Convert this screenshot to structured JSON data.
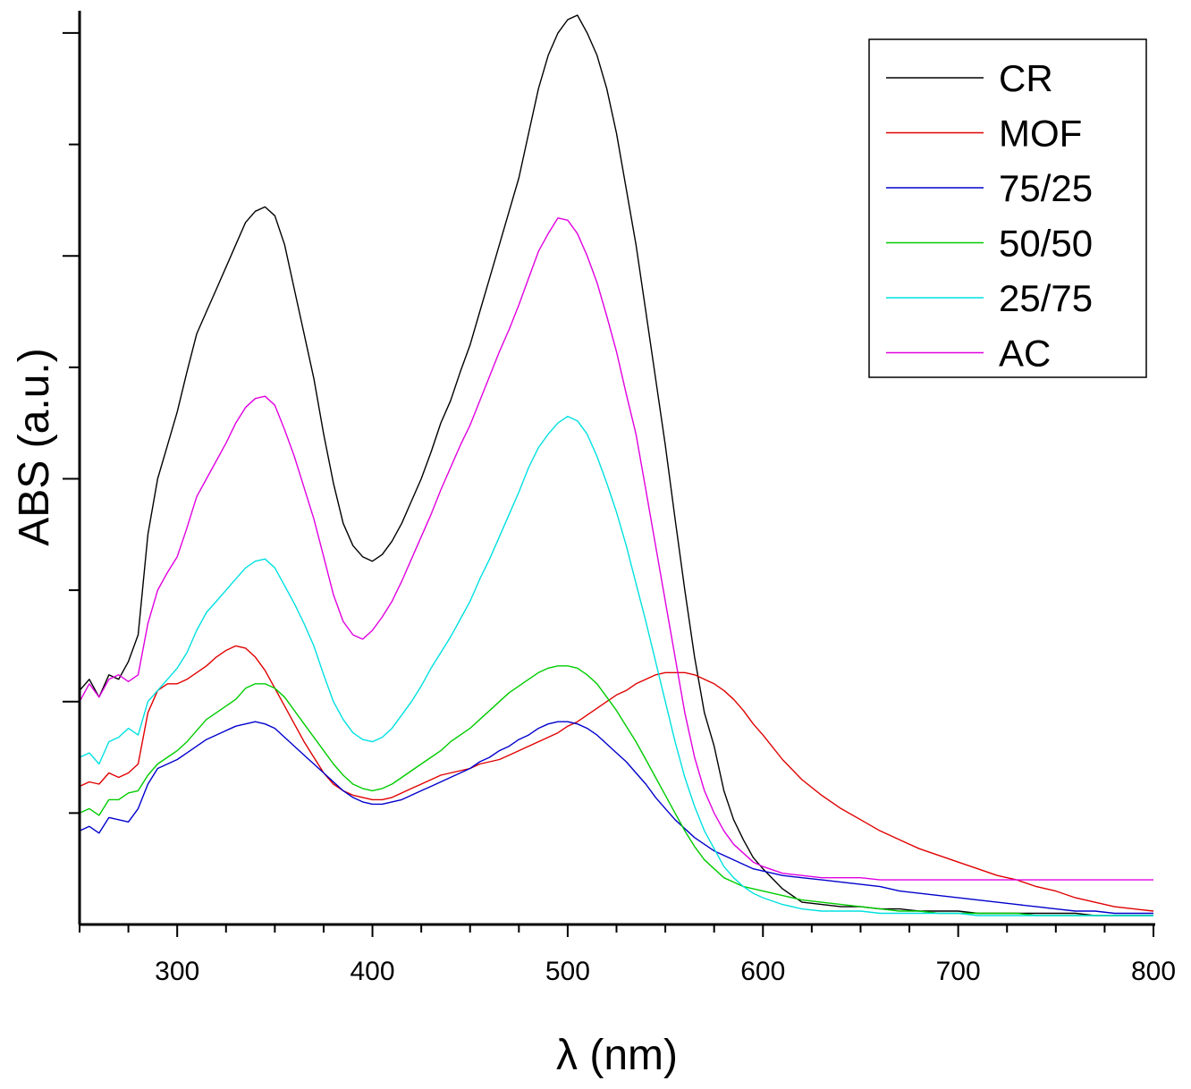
{
  "chart_data": {
    "type": "line",
    "title": "",
    "xlabel": "λ (nm)",
    "ylabel": "ABS (a.u.)",
    "xlim": [
      250,
      800
    ],
    "ylim": [
      0,
      4.1
    ],
    "x_ticks": [
      300,
      400,
      500,
      600,
      700,
      800
    ],
    "x_tick_labels": [
      "300",
      "400",
      "500",
      "600",
      "700",
      "800"
    ],
    "y_tick_labels_shown": false,
    "legend_position": "top-right",
    "x": [
      250,
      255,
      260,
      265,
      270,
      275,
      280,
      285,
      290,
      295,
      300,
      305,
      310,
      315,
      320,
      325,
      330,
      335,
      340,
      345,
      350,
      355,
      360,
      365,
      370,
      375,
      380,
      385,
      390,
      395,
      400,
      405,
      410,
      415,
      420,
      425,
      430,
      435,
      440,
      445,
      450,
      455,
      460,
      465,
      470,
      475,
      480,
      485,
      490,
      495,
      500,
      505,
      510,
      515,
      520,
      525,
      530,
      535,
      540,
      545,
      550,
      555,
      560,
      565,
      570,
      575,
      580,
      585,
      590,
      595,
      600,
      610,
      620,
      630,
      640,
      650,
      660,
      670,
      680,
      690,
      700,
      710,
      720,
      730,
      740,
      750,
      760,
      770,
      780,
      790,
      800
    ],
    "series": [
      {
        "name": "CR",
        "color": "#000000",
        "values": [
          1.05,
          1.1,
          1.02,
          1.12,
          1.1,
          1.18,
          1.3,
          1.75,
          2.0,
          2.15,
          2.3,
          2.48,
          2.65,
          2.75,
          2.85,
          2.95,
          3.05,
          3.15,
          3.2,
          3.22,
          3.18,
          3.05,
          2.85,
          2.65,
          2.45,
          2.2,
          1.98,
          1.8,
          1.7,
          1.65,
          1.63,
          1.66,
          1.72,
          1.8,
          1.9,
          2.0,
          2.12,
          2.25,
          2.35,
          2.48,
          2.6,
          2.75,
          2.9,
          3.05,
          3.2,
          3.35,
          3.55,
          3.75,
          3.9,
          4.0,
          4.06,
          4.08,
          4.0,
          3.9,
          3.75,
          3.55,
          3.3,
          3.05,
          2.75,
          2.45,
          2.15,
          1.82,
          1.5,
          1.2,
          0.95,
          0.8,
          0.6,
          0.47,
          0.38,
          0.3,
          0.25,
          0.16,
          0.1,
          0.09,
          0.08,
          0.08,
          0.07,
          0.07,
          0.06,
          0.06,
          0.06,
          0.05,
          0.05,
          0.05,
          0.05,
          0.05,
          0.05,
          0.04,
          0.04,
          0.04,
          0.04
        ]
      },
      {
        "name": "MOF",
        "color": "#e00000",
        "values": [
          0.62,
          0.64,
          0.63,
          0.68,
          0.66,
          0.68,
          0.72,
          0.95,
          1.05,
          1.08,
          1.08,
          1.1,
          1.13,
          1.16,
          1.2,
          1.23,
          1.25,
          1.24,
          1.2,
          1.14,
          1.06,
          0.98,
          0.9,
          0.82,
          0.75,
          0.68,
          0.63,
          0.6,
          0.58,
          0.57,
          0.56,
          0.56,
          0.57,
          0.59,
          0.61,
          0.63,
          0.65,
          0.67,
          0.68,
          0.69,
          0.7,
          0.72,
          0.73,
          0.74,
          0.76,
          0.78,
          0.8,
          0.82,
          0.84,
          0.86,
          0.89,
          0.91,
          0.94,
          0.97,
          1.0,
          1.03,
          1.05,
          1.08,
          1.1,
          1.12,
          1.13,
          1.13,
          1.13,
          1.12,
          1.1,
          1.08,
          1.05,
          1.01,
          0.96,
          0.9,
          0.85,
          0.74,
          0.65,
          0.58,
          0.52,
          0.47,
          0.42,
          0.38,
          0.34,
          0.31,
          0.28,
          0.25,
          0.22,
          0.2,
          0.17,
          0.15,
          0.12,
          0.1,
          0.08,
          0.07,
          0.06
        ]
      },
      {
        "name": "75/25",
        "color": "#0000cc",
        "values": [
          0.42,
          0.44,
          0.41,
          0.48,
          0.47,
          0.46,
          0.52,
          0.63,
          0.7,
          0.72,
          0.74,
          0.77,
          0.8,
          0.83,
          0.85,
          0.87,
          0.89,
          0.9,
          0.91,
          0.9,
          0.88,
          0.84,
          0.8,
          0.76,
          0.72,
          0.68,
          0.64,
          0.6,
          0.57,
          0.55,
          0.54,
          0.54,
          0.55,
          0.56,
          0.58,
          0.6,
          0.62,
          0.64,
          0.66,
          0.68,
          0.7,
          0.73,
          0.75,
          0.78,
          0.8,
          0.83,
          0.85,
          0.88,
          0.9,
          0.91,
          0.91,
          0.9,
          0.88,
          0.85,
          0.81,
          0.77,
          0.73,
          0.68,
          0.63,
          0.57,
          0.52,
          0.47,
          0.43,
          0.39,
          0.36,
          0.33,
          0.31,
          0.29,
          0.27,
          0.25,
          0.24,
          0.22,
          0.21,
          0.2,
          0.19,
          0.18,
          0.17,
          0.15,
          0.14,
          0.13,
          0.12,
          0.11,
          0.1,
          0.09,
          0.08,
          0.07,
          0.06,
          0.06,
          0.05,
          0.05,
          0.05
        ]
      },
      {
        "name": "50/50",
        "color": "#00cc00",
        "values": [
          0.5,
          0.52,
          0.49,
          0.56,
          0.56,
          0.59,
          0.6,
          0.67,
          0.72,
          0.75,
          0.78,
          0.82,
          0.87,
          0.92,
          0.95,
          0.98,
          1.01,
          1.06,
          1.08,
          1.08,
          1.06,
          1.02,
          0.96,
          0.9,
          0.84,
          0.78,
          0.72,
          0.67,
          0.63,
          0.61,
          0.6,
          0.61,
          0.63,
          0.66,
          0.69,
          0.72,
          0.75,
          0.78,
          0.82,
          0.85,
          0.88,
          0.92,
          0.96,
          1.0,
          1.04,
          1.07,
          1.1,
          1.13,
          1.15,
          1.16,
          1.16,
          1.15,
          1.12,
          1.08,
          1.02,
          0.96,
          0.89,
          0.82,
          0.74,
          0.66,
          0.58,
          0.5,
          0.42,
          0.35,
          0.29,
          0.25,
          0.21,
          0.19,
          0.17,
          0.16,
          0.15,
          0.13,
          0.11,
          0.1,
          0.09,
          0.08,
          0.07,
          0.06,
          0.06,
          0.05,
          0.05,
          0.05,
          0.05,
          0.05,
          0.04,
          0.04,
          0.04,
          0.04,
          0.04,
          0.04,
          0.04
        ]
      },
      {
        "name": "25/75",
        "color": "#00e0e0",
        "values": [
          0.75,
          0.77,
          0.72,
          0.82,
          0.84,
          0.88,
          0.85,
          1.0,
          1.05,
          1.1,
          1.15,
          1.22,
          1.32,
          1.4,
          1.45,
          1.5,
          1.55,
          1.6,
          1.63,
          1.64,
          1.6,
          1.52,
          1.44,
          1.35,
          1.25,
          1.12,
          1.0,
          0.92,
          0.86,
          0.83,
          0.82,
          0.84,
          0.88,
          0.94,
          1.0,
          1.07,
          1.15,
          1.22,
          1.29,
          1.37,
          1.45,
          1.55,
          1.64,
          1.74,
          1.84,
          1.94,
          2.05,
          2.14,
          2.2,
          2.25,
          2.28,
          2.26,
          2.2,
          2.1,
          1.98,
          1.85,
          1.7,
          1.53,
          1.36,
          1.18,
          1.0,
          0.82,
          0.66,
          0.53,
          0.42,
          0.34,
          0.26,
          0.21,
          0.17,
          0.14,
          0.12,
          0.09,
          0.07,
          0.06,
          0.06,
          0.06,
          0.05,
          0.05,
          0.05,
          0.05,
          0.05,
          0.04,
          0.04,
          0.04,
          0.04,
          0.04,
          0.04,
          0.04,
          0.04,
          0.04,
          0.04
        ]
      },
      {
        "name": "AC",
        "color": "#e000e0",
        "values": [
          1.0,
          1.08,
          1.02,
          1.1,
          1.12,
          1.09,
          1.12,
          1.35,
          1.5,
          1.58,
          1.65,
          1.78,
          1.92,
          2.0,
          2.08,
          2.16,
          2.25,
          2.32,
          2.36,
          2.37,
          2.33,
          2.22,
          2.1,
          1.96,
          1.82,
          1.65,
          1.48,
          1.36,
          1.3,
          1.28,
          1.32,
          1.38,
          1.45,
          1.54,
          1.64,
          1.74,
          1.84,
          1.95,
          2.05,
          2.15,
          2.24,
          2.35,
          2.46,
          2.57,
          2.67,
          2.78,
          2.9,
          3.02,
          3.1,
          3.17,
          3.16,
          3.1,
          3.0,
          2.88,
          2.73,
          2.57,
          2.38,
          2.2,
          1.95,
          1.7,
          1.45,
          1.2,
          0.95,
          0.75,
          0.6,
          0.5,
          0.42,
          0.36,
          0.32,
          0.28,
          0.26,
          0.23,
          0.22,
          0.21,
          0.21,
          0.21,
          0.2,
          0.2,
          0.2,
          0.2,
          0.2,
          0.2,
          0.2,
          0.2,
          0.2,
          0.2,
          0.2,
          0.2,
          0.2,
          0.2,
          0.2
        ]
      }
    ]
  }
}
